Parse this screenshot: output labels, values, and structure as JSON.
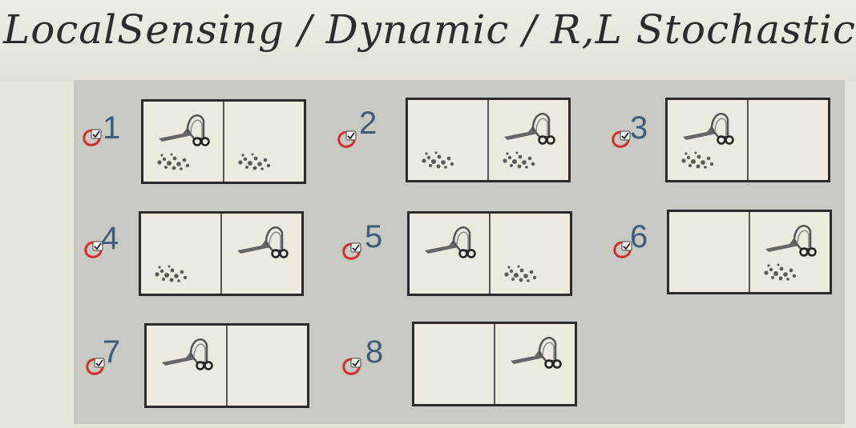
{
  "header": {
    "title": "LocalSensing / Dynamic / R,L Stochastic"
  },
  "states": [
    {
      "number": "1",
      "left": {
        "vacuum": true,
        "dirt": true
      },
      "right": {
        "vacuum": false,
        "dirt": true
      },
      "checked": true
    },
    {
      "number": "2",
      "left": {
        "vacuum": false,
        "dirt": true
      },
      "right": {
        "vacuum": true,
        "dirt": true
      },
      "checked": true
    },
    {
      "number": "3",
      "left": {
        "vacuum": true,
        "dirt": true
      },
      "right": {
        "vacuum": false,
        "dirt": false
      },
      "checked": true
    },
    {
      "number": "4",
      "left": {
        "vacuum": false,
        "dirt": true
      },
      "right": {
        "vacuum": true,
        "dirt": false
      },
      "checked": true
    },
    {
      "number": "5",
      "left": {
        "vacuum": true,
        "dirt": false
      },
      "right": {
        "vacuum": false,
        "dirt": true
      },
      "checked": true
    },
    {
      "number": "6",
      "left": {
        "vacuum": false,
        "dirt": false
      },
      "right": {
        "vacuum": true,
        "dirt": true
      },
      "checked": true
    },
    {
      "number": "7",
      "left": {
        "vacuum": true,
        "dirt": false
      },
      "right": {
        "vacuum": false,
        "dirt": false
      },
      "checked": true
    },
    {
      "number": "8",
      "left": {
        "vacuum": false,
        "dirt": false
      },
      "right": {
        "vacuum": true,
        "dirt": false
      },
      "checked": true
    }
  ],
  "colors": {
    "number": "#3f5b78",
    "annotation_circle": "#d0302a",
    "panel": "#c9c9c4",
    "paper": "#e7e5da"
  }
}
